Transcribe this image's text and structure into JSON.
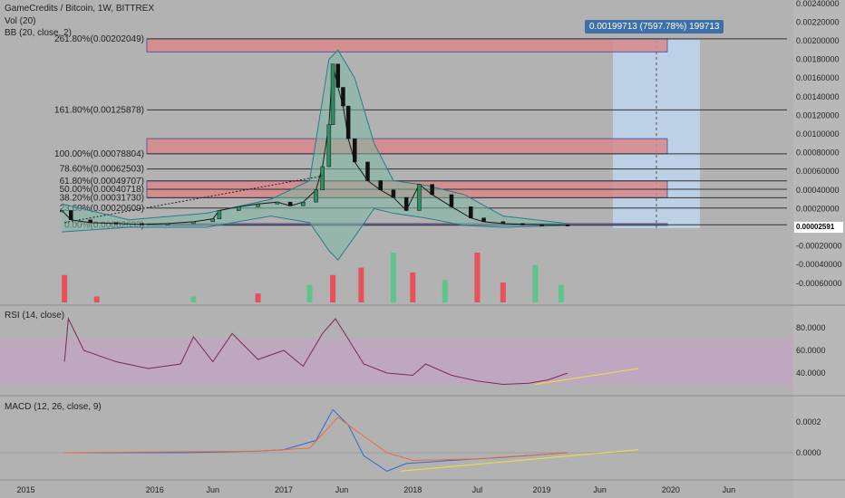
{
  "header": {
    "symbol_line": "GameCredits / Bitcoin, 1W, BITTREX",
    "vol_label": "Vol (20)",
    "bb_label": "BB (20, close, 2)",
    "rsi_label": "RSI (14, close)",
    "macd_label": "MACD (12, 26, close, 9)"
  },
  "measure_badge": "0.00199713 (7597.78%) 199713",
  "last_price_badge": "0.00002591",
  "colors": {
    "background": "#b2b2b2",
    "bull": "#2e8f63",
    "bear": "#d8303d",
    "volume_up": "#5fc48c",
    "volume_down": "#e8505b",
    "bb_upper_lower": "#2a7c8c",
    "bb_basis": "#8b1a3b",
    "bb_fill": "#7fb8a5",
    "fib_zone": "#d98a8a",
    "measure_box": "#bcd4ea",
    "rsi_line": "#7a2a58",
    "rsi_band": "#c6a3c6",
    "macd_line": "#2c6ed1",
    "signal_line": "#ef6a3a",
    "trendline": "#f0e040"
  },
  "chart_data": [
    {
      "type": "candlestick",
      "title": "GameCredits / Bitcoin, 1W, BITTREX",
      "x_ticks": [
        "2015",
        "2016",
        "Jun",
        "2017",
        "Jun",
        "2018",
        "Jul",
        "2019",
        "Jun",
        "2020",
        "Jun"
      ],
      "y_ticks": [
        "0.00240000",
        "0.00220000",
        "0.00200000",
        "0.00180000",
        "0.00160000",
        "0.00140000",
        "0.00120000",
        "0.00100000",
        "0.00080000",
        "0.00060000",
        "0.00040000",
        "0.00020000",
        "0.00000000",
        "-0.00020000",
        "-0.00040000",
        "-0.00060000"
      ],
      "ylim": [
        -0.0007,
        0.0025
      ],
      "fibonacci_levels": [
        {
          "label": "261.80%(0.00202049)",
          "value": 0.00202049
        },
        {
          "label": "161.80%(0.00125878)",
          "value": 0.00125878
        },
        {
          "label": "100.00%(0.00078804)",
          "value": 0.00078804
        },
        {
          "label": "78.60%(0.00062503)",
          "value": 0.00062503
        },
        {
          "label": "61.80%(0.00049707)",
          "value": 0.00049707
        },
        {
          "label": "50.00%(0.00040718)",
          "value": 0.00040718
        },
        {
          "label": "38.20%(0.00031730)",
          "value": 0.0003173
        },
        {
          "label": "23.60%(0.00020609)",
          "value": 0.00020609
        },
        {
          "label": "0.00%(0.00002633)",
          "value": 2.633e-05
        }
      ],
      "close_series": [
        {
          "t": 2015.28,
          "v": 0.00018
        },
        {
          "t": 2015.35,
          "v": 8e-05
        },
        {
          "t": 2015.5,
          "v": 5e-05
        },
        {
          "t": 2015.7,
          "v": 4e-05
        },
        {
          "t": 2015.9,
          "v": 3e-05
        },
        {
          "t": 2016.1,
          "v": 4e-05
        },
        {
          "t": 2016.3,
          "v": 6e-05
        },
        {
          "t": 2016.45,
          "v": 9e-05
        },
        {
          "t": 2016.5,
          "v": 0.00018
        },
        {
          "t": 2016.65,
          "v": 0.00022
        },
        {
          "t": 2016.8,
          "v": 0.00025
        },
        {
          "t": 2016.95,
          "v": 0.00027
        },
        {
          "t": 2017.05,
          "v": 0.00023
        },
        {
          "t": 2017.15,
          "v": 0.00027
        },
        {
          "t": 2017.25,
          "v": 0.0004
        },
        {
          "t": 2017.3,
          "v": 0.00065
        },
        {
          "t": 2017.35,
          "v": 0.0011
        },
        {
          "t": 2017.38,
          "v": 0.00175
        },
        {
          "t": 2017.42,
          "v": 0.0015
        },
        {
          "t": 2017.46,
          "v": 0.0013
        },
        {
          "t": 2017.5,
          "v": 0.00095
        },
        {
          "t": 2017.55,
          "v": 0.0007
        },
        {
          "t": 2017.65,
          "v": 0.0005
        },
        {
          "t": 2017.75,
          "v": 0.0004
        },
        {
          "t": 2017.85,
          "v": 0.00032
        },
        {
          "t": 2017.95,
          "v": 0.00018
        },
        {
          "t": 2018.05,
          "v": 0.00046
        },
        {
          "t": 2018.15,
          "v": 0.00035
        },
        {
          "t": 2018.3,
          "v": 0.00022
        },
        {
          "t": 2018.45,
          "v": 0.0001
        },
        {
          "t": 2018.55,
          "v": 6e-05
        },
        {
          "t": 2018.7,
          "v": 4e-05
        },
        {
          "t": 2018.85,
          "v": 3e-05
        },
        {
          "t": 2019.0,
          "v": 2.8e-05
        },
        {
          "t": 2019.2,
          "v": 2.6e-05
        }
      ],
      "volume": [
        {
          "t": 2015.3,
          "v": 0.55,
          "dir": "down"
        },
        {
          "t": 2015.55,
          "v": 0.12,
          "dir": "down"
        },
        {
          "t": 2016.3,
          "v": 0.12,
          "dir": "up"
        },
        {
          "t": 2016.8,
          "v": 0.18,
          "dir": "down"
        },
        {
          "t": 2017.2,
          "v": 0.35,
          "dir": "up"
        },
        {
          "t": 2017.38,
          "v": 0.55,
          "dir": "down"
        },
        {
          "t": 2017.6,
          "v": 0.7,
          "dir": "down"
        },
        {
          "t": 2017.85,
          "v": 1.0,
          "dir": "up"
        },
        {
          "t": 2018.0,
          "v": 0.6,
          "dir": "down"
        },
        {
          "t": 2018.25,
          "v": 0.45,
          "dir": "up"
        },
        {
          "t": 2018.5,
          "v": 1.0,
          "dir": "down"
        },
        {
          "t": 2018.7,
          "v": 0.4,
          "dir": "down"
        },
        {
          "t": 2018.95,
          "v": 0.75,
          "dir": "up"
        },
        {
          "t": 2019.15,
          "v": 0.35,
          "dir": "up"
        }
      ]
    },
    {
      "type": "line",
      "title": "RSI (14, close)",
      "y_ticks": [
        "80.0000",
        "60.0000",
        "40.0000"
      ],
      "band": [
        30,
        70
      ],
      "series": [
        {
          "t": 2015.3,
          "v": 50
        },
        {
          "t": 2015.33,
          "v": 88
        },
        {
          "t": 2015.45,
          "v": 60
        },
        {
          "t": 2015.7,
          "v": 50
        },
        {
          "t": 2015.95,
          "v": 44
        },
        {
          "t": 2016.2,
          "v": 48
        },
        {
          "t": 2016.3,
          "v": 72
        },
        {
          "t": 2016.45,
          "v": 50
        },
        {
          "t": 2016.6,
          "v": 75
        },
        {
          "t": 2016.8,
          "v": 52
        },
        {
          "t": 2017.0,
          "v": 60
        },
        {
          "t": 2017.15,
          "v": 46
        },
        {
          "t": 2017.3,
          "v": 75
        },
        {
          "t": 2017.4,
          "v": 88
        },
        {
          "t": 2017.5,
          "v": 70
        },
        {
          "t": 2017.62,
          "v": 48
        },
        {
          "t": 2017.8,
          "v": 40
        },
        {
          "t": 2018.0,
          "v": 38
        },
        {
          "t": 2018.1,
          "v": 48
        },
        {
          "t": 2018.3,
          "v": 38
        },
        {
          "t": 2018.5,
          "v": 33
        },
        {
          "t": 2018.7,
          "v": 30
        },
        {
          "t": 2018.9,
          "v": 31
        },
        {
          "t": 2019.05,
          "v": 34
        },
        {
          "t": 2019.2,
          "v": 40
        }
      ]
    },
    {
      "type": "line",
      "title": "MACD (12, 26, close, 9)",
      "y_ticks": [
        "0.0002",
        "0.0000"
      ],
      "macd": [
        {
          "t": 2015.3,
          "v": 0.0
        },
        {
          "t": 2016.2,
          "v": 0.0
        },
        {
          "t": 2016.8,
          "v": 1e-05
        },
        {
          "t": 2017.0,
          "v": 2e-05
        },
        {
          "t": 2017.25,
          "v": 8e-05
        },
        {
          "t": 2017.38,
          "v": 0.00028
        },
        {
          "t": 2017.5,
          "v": 0.00018
        },
        {
          "t": 2017.62,
          "v": -2e-05
        },
        {
          "t": 2017.8,
          "v": -0.00012
        },
        {
          "t": 2017.95,
          "v": -7e-05
        },
        {
          "t": 2018.3,
          "v": -5e-05
        },
        {
          "t": 2018.7,
          "v": -3e-05
        },
        {
          "t": 2019.2,
          "v": 0.0
        }
      ],
      "signal": [
        {
          "t": 2015.3,
          "v": 0.0
        },
        {
          "t": 2016.8,
          "v": 1e-05
        },
        {
          "t": 2017.2,
          "v": 3e-05
        },
        {
          "t": 2017.42,
          "v": 0.00023
        },
        {
          "t": 2017.6,
          "v": 0.00012
        },
        {
          "t": 2017.8,
          "v": 0.0
        },
        {
          "t": 2018.0,
          "v": -5e-05
        },
        {
          "t": 2018.5,
          "v": -4e-05
        },
        {
          "t": 2019.2,
          "v": 0.0
        }
      ]
    }
  ]
}
